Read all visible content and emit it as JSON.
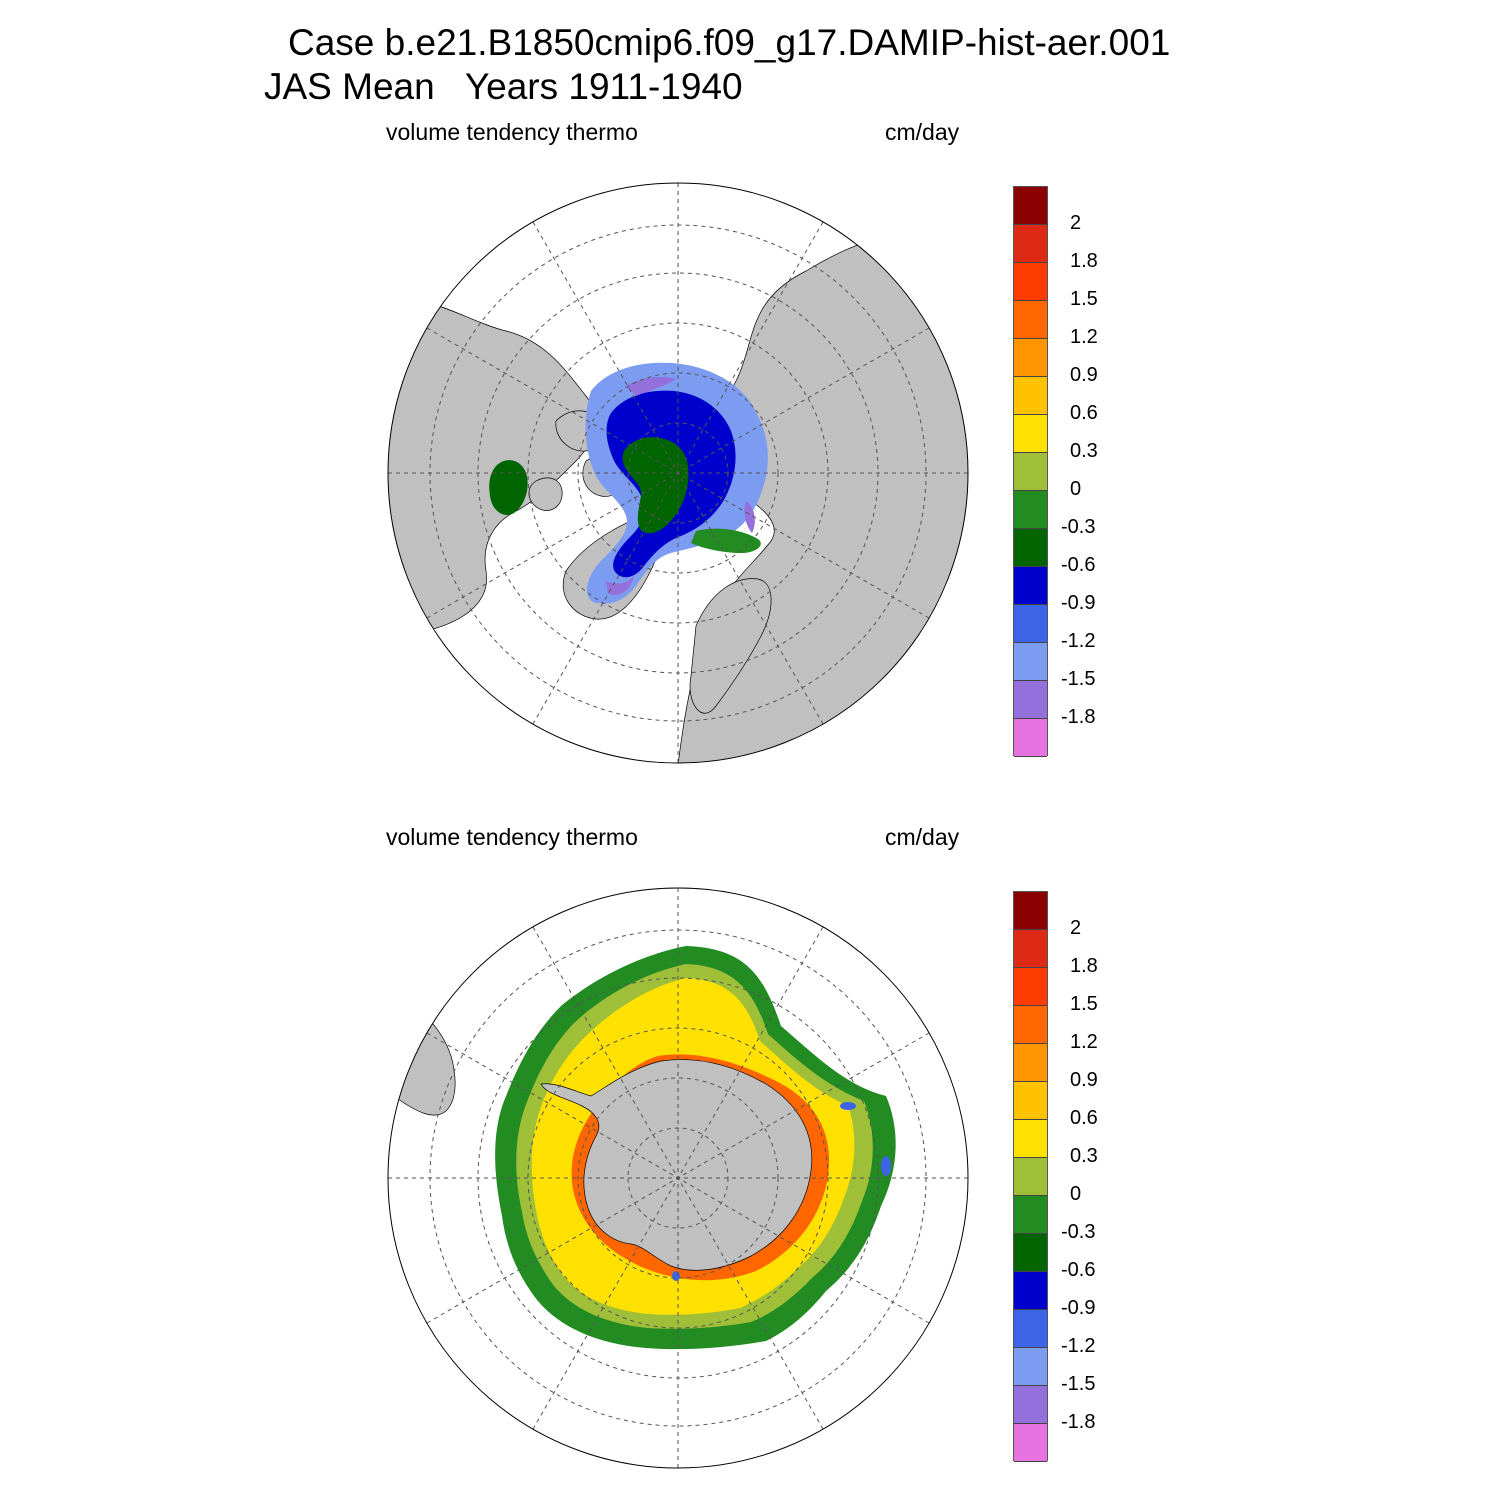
{
  "header": {
    "line1": "Case b.e21.B1850cmip6.f09_g17.DAMIP-hist-aer.001",
    "line2": "JAS Mean   Years 1911-1940"
  },
  "panels": [
    {
      "id": "north",
      "variable": "volume tendency thermo",
      "units": "cm/day"
    },
    {
      "id": "south",
      "variable": "volume tendency thermo",
      "units": "cm/day"
    }
  ],
  "colorbar": {
    "labels": [
      "2",
      "1.8",
      "1.5",
      "1.2",
      "0.9",
      "0.6",
      "0.3",
      "0",
      "-0.3",
      "-0.6",
      "-0.9",
      "-1.2",
      "-1.5",
      "-1.8"
    ],
    "colors": [
      "#8b0000",
      "#dc2a14",
      "#ff3c00",
      "#ff6600",
      "#ff9500",
      "#ffc200",
      "#ffe100",
      "#9fbf38",
      "#228b22",
      "#006400",
      "#0000cd",
      "#3d64e6",
      "#7b9cf0",
      "#9370db",
      "#e673e0"
    ]
  },
  "map_style": {
    "land": "#c0c0c0",
    "ocean": "#ffffff",
    "grid": "#555555"
  }
}
